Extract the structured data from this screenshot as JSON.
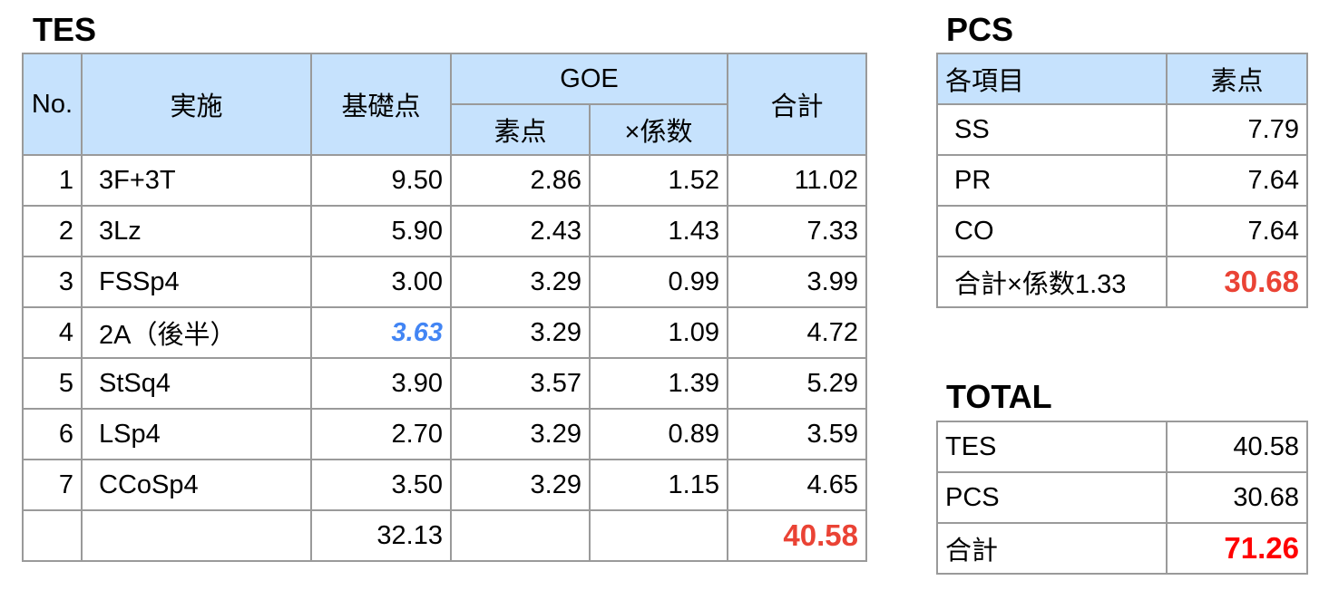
{
  "tes": {
    "title": "TES",
    "headers": {
      "no": "No.",
      "element": "実施",
      "base": "基礎点",
      "goe": "GOE",
      "goe_raw": "素点",
      "goe_factor": "×係数",
      "total": "合計"
    },
    "rows": [
      {
        "no": "1",
        "element": "3F+3T",
        "base": "9.50",
        "goe_raw": "2.86",
        "goe_factor": "1.52",
        "total": "11.02"
      },
      {
        "no": "2",
        "element": "3Lz",
        "base": "5.90",
        "goe_raw": "2.43",
        "goe_factor": "1.43",
        "total": "7.33"
      },
      {
        "no": "3",
        "element": "FSSp4",
        "base": "3.00",
        "goe_raw": "3.29",
        "goe_factor": "0.99",
        "total": "3.99"
      },
      {
        "no": "4",
        "element": "2A（後半）",
        "base": "3.63",
        "goe_raw": "3.29",
        "goe_factor": "1.09",
        "total": "4.72"
      },
      {
        "no": "5",
        "element": "StSq4",
        "base": "3.90",
        "goe_raw": "3.57",
        "goe_factor": "1.39",
        "total": "5.29"
      },
      {
        "no": "6",
        "element": "LSp4",
        "base": "2.70",
        "goe_raw": "3.29",
        "goe_factor": "0.89",
        "total": "3.59"
      },
      {
        "no": "7",
        "element": "CCoSp4",
        "base": "3.50",
        "goe_raw": "3.29",
        "goe_factor": "1.15",
        "total": "4.65"
      }
    ],
    "sum": {
      "base": "32.13",
      "total": "40.58"
    }
  },
  "pcs": {
    "title": "PCS",
    "headers": {
      "item": "各項目",
      "score": "素点"
    },
    "rows": [
      {
        "item": "SS",
        "score": "7.79"
      },
      {
        "item": "PR",
        "score": "7.64"
      },
      {
        "item": "CO",
        "score": "7.64"
      }
    ],
    "sum": {
      "label": "合計×係数1.33",
      "score": "30.68"
    }
  },
  "total": {
    "title": "TOTAL",
    "rows": [
      {
        "label": "TES",
        "value": "40.58"
      },
      {
        "label": "PCS",
        "value": "30.68"
      }
    ],
    "sum": {
      "label": "合計",
      "value": "71.26"
    }
  },
  "colors": {
    "header_bg": "#c6e2fd",
    "highlight_blue": "#4285f4",
    "pcs_sum_red": "#ea4335",
    "total_red": "#ff0000"
  }
}
